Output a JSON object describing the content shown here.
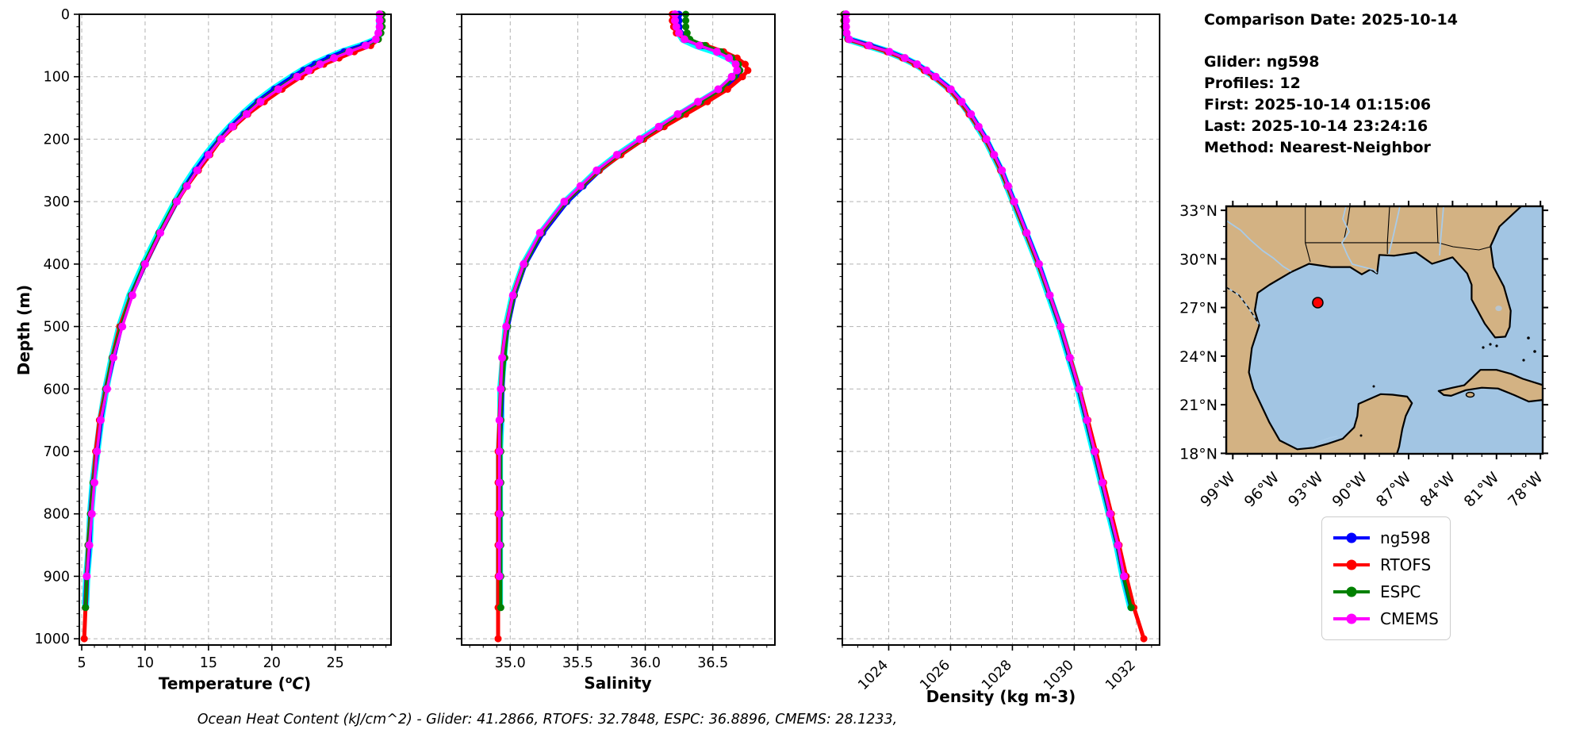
{
  "info": {
    "comparison_date": "Comparison Date: 2025-10-14",
    "glider": "Glider: ng598",
    "profiles": "Profiles: 12",
    "first": "First: 2025-10-14 01:15:06",
    "last": "Last: 2025-10-14 23:24:16",
    "method": "Method: Nearest-Neighbor"
  },
  "footer": "Ocean Heat Content (kJ/cm^2) - Glider: 41.2866,  RTOFS: 32.7848,  ESPC: 36.8896,  CMEMS: 28.1233,",
  "ylabel": "Depth (m)",
  "temp_label": {
    "pre": "Temperature (",
    "sup": "o",
    "it": "C",
    "post": ")"
  },
  "legend": {
    "items": [
      {
        "label": "ng598",
        "color": "#0000ff"
      },
      {
        "label": "RTOFS",
        "color": "#ff0000"
      },
      {
        "label": "ESPC",
        "color": "#008000"
      },
      {
        "label": "CMEMS",
        "color": "#ff00ff"
      }
    ]
  },
  "map": {
    "lat_tick_labels": [
      "33°N",
      "30°N",
      "27°N",
      "24°N",
      "21°N",
      "18°N"
    ],
    "lat_tick_values": [
      33,
      30,
      27,
      24,
      21,
      18
    ],
    "lon_tick_labels": [
      "99°W",
      "96°W",
      "93°W",
      "90°W",
      "87°W",
      "84°W",
      "81°W",
      "78°W"
    ],
    "lon_tick_values": [
      -99,
      -96,
      -93,
      -90,
      -87,
      -84,
      -81,
      -78
    ],
    "land_color": "#d3b283",
    "ocean_color": "#a2c5e3",
    "river_color": "#a9cbe8",
    "marker": {
      "lon": -93.2,
      "lat": 27.3,
      "color": "#ff0000"
    }
  },
  "chart_data": [
    {
      "type": "line",
      "xlabel": "Temperature (°C)",
      "ylabel": "Depth (m)",
      "xlim": [
        4.81,
        29.4
      ],
      "ylim": [
        1010,
        0
      ],
      "xticks": [
        5,
        10,
        15,
        20,
        25
      ],
      "xtick_labels": [
        "5",
        "10",
        "15",
        "20",
        "25"
      ],
      "x_minor_step": 1,
      "yticks": [
        0,
        100,
        200,
        300,
        400,
        500,
        600,
        700,
        800,
        900,
        1000
      ],
      "y_minor_step": 20,
      "xtick_rotation": 0,
      "show_ylabels": true,
      "depths": [
        0,
        10,
        20,
        30,
        40,
        50,
        60,
        70,
        80,
        90,
        100,
        120,
        140,
        160,
        180,
        200,
        225,
        250,
        275,
        300,
        350,
        400,
        450,
        500,
        550,
        600,
        650,
        700,
        750,
        800,
        850,
        900,
        950,
        1000
      ],
      "series": [
        {
          "name": "glider-raw",
          "color": "#00ffff",
          "width": 9,
          "marker_r": 0,
          "last_depth": 950,
          "values": [
            28.5,
            28.5,
            28.5,
            28.5,
            28.3,
            27.1,
            25.6,
            24.4,
            23.3,
            22.4,
            21.6,
            20.1,
            18.8,
            17.7,
            16.7,
            15.8,
            14.8,
            13.9,
            13.1,
            12.4,
            11.1,
            9.9,
            8.8,
            8.0,
            7.4,
            6.9,
            6.5,
            6.2,
            5.9,
            5.7,
            5.6,
            5.4,
            5.3,
            5.2
          ]
        },
        {
          "name": "ng598",
          "color": "#0000ff",
          "width": 6,
          "marker_r": 4.5,
          "last_depth": 950,
          "values": [
            28.5,
            28.5,
            28.5,
            28.5,
            28.3,
            27.2,
            25.7,
            24.5,
            23.4,
            22.5,
            21.7,
            20.2,
            18.9,
            17.8,
            16.8,
            15.9,
            14.9,
            14.0,
            13.2,
            12.5,
            11.2,
            10.0,
            8.9,
            8.1,
            7.5,
            6.9,
            6.5,
            6.2,
            5.9,
            5.7,
            5.6,
            5.4,
            5.3,
            5.2
          ]
        },
        {
          "name": "RTOFS",
          "color": "#ff0000",
          "width": 5,
          "marker_r": 4.5,
          "last_depth": 1000,
          "values": [
            28.6,
            28.6,
            28.6,
            28.5,
            28.4,
            27.8,
            26.5,
            25.3,
            24.1,
            23.1,
            22.3,
            20.8,
            19.4,
            18.1,
            17.0,
            16.0,
            15.1,
            14.2,
            13.3,
            12.5,
            11.2,
            10.0,
            8.9,
            8.0,
            7.4,
            6.9,
            6.4,
            6.1,
            5.9,
            5.7,
            5.5,
            5.4,
            5.3,
            5.2
          ]
        },
        {
          "name": "ESPC",
          "color": "#008000",
          "width": 4,
          "marker_r": 4.5,
          "last_depth": 950,
          "values": [
            28.7,
            28.7,
            28.7,
            28.6,
            28.4,
            27.4,
            26.0,
            24.8,
            23.7,
            22.8,
            21.9,
            20.4,
            19.0,
            17.9,
            16.9,
            15.9,
            15.0,
            14.1,
            13.2,
            12.4,
            11.1,
            9.9,
            8.9,
            8.1,
            7.4,
            6.9,
            6.5,
            6.2,
            5.9,
            5.7,
            5.5,
            5.4,
            5.3,
            5.2
          ]
        },
        {
          "name": "CMEMS",
          "color": "#ff00ff",
          "width": 3.5,
          "marker_r": 5,
          "last_depth": 900,
          "values": [
            28.5,
            28.5,
            28.5,
            28.4,
            28.2,
            27.4,
            26.1,
            24.9,
            23.8,
            22.9,
            22.0,
            20.5,
            19.1,
            18.0,
            16.9,
            16.0,
            15.0,
            14.1,
            13.3,
            12.5,
            11.2,
            10.0,
            9.0,
            8.2,
            7.5,
            7.0,
            6.5,
            6.2,
            6.0,
            5.8,
            5.6,
            5.4,
            5.3,
            5.2
          ]
        }
      ]
    },
    {
      "type": "line",
      "xlabel": "Salinity",
      "xlim": [
        34.64,
        36.96
      ],
      "ylim": [
        1010,
        0
      ],
      "xticks": [
        35.0,
        35.5,
        36.0,
        36.5
      ],
      "xtick_labels": [
        "35.0",
        "35.5",
        "36.0",
        "36.5"
      ],
      "x_minor_step": 0.1,
      "yticks": [
        0,
        100,
        200,
        300,
        400,
        500,
        600,
        700,
        800,
        900,
        1000
      ],
      "y_minor_step": 20,
      "xtick_rotation": 0,
      "show_ylabels": false,
      "depths": [
        0,
        10,
        20,
        30,
        40,
        50,
        60,
        70,
        80,
        90,
        100,
        120,
        140,
        160,
        180,
        200,
        225,
        250,
        275,
        300,
        350,
        400,
        450,
        500,
        550,
        600,
        650,
        700,
        750,
        800,
        850,
        900,
        950,
        1000
      ],
      "series": [
        {
          "name": "glider-raw",
          "color": "#00ffff",
          "width": 9,
          "marker_r": 0,
          "last_depth": 950,
          "values": [
            36.24,
            36.24,
            36.24,
            36.25,
            36.28,
            36.38,
            36.52,
            36.62,
            36.68,
            36.69,
            36.66,
            36.56,
            36.41,
            36.26,
            36.11,
            35.97,
            35.8,
            35.65,
            35.53,
            35.41,
            35.23,
            35.1,
            35.02,
            34.97,
            34.95,
            34.93,
            34.93,
            34.92,
            34.92,
            34.92,
            34.92,
            34.92,
            34.92,
            34.92
          ]
        },
        {
          "name": "ng598",
          "color": "#0000ff",
          "width": 6,
          "marker_r": 4.5,
          "last_depth": 950,
          "values": [
            36.25,
            36.25,
            36.25,
            36.26,
            36.3,
            36.42,
            36.55,
            36.64,
            36.69,
            36.7,
            36.67,
            36.57,
            36.42,
            36.27,
            36.12,
            35.98,
            35.81,
            35.66,
            35.54,
            35.42,
            35.24,
            35.11,
            35.03,
            34.98,
            34.95,
            34.94,
            34.93,
            34.92,
            34.92,
            34.92,
            34.92,
            34.92,
            34.92,
            34.92
          ]
        },
        {
          "name": "RTOFS",
          "color": "#ff0000",
          "width": 5,
          "marker_r": 4.5,
          "last_depth": 1000,
          "values": [
            36.2,
            36.2,
            36.21,
            36.23,
            36.3,
            36.45,
            36.58,
            36.68,
            36.74,
            36.76,
            36.72,
            36.61,
            36.46,
            36.3,
            36.14,
            35.99,
            35.82,
            35.66,
            35.53,
            35.41,
            35.23,
            35.1,
            35.02,
            34.97,
            34.94,
            34.93,
            34.92,
            34.91,
            34.91,
            34.91,
            34.91,
            34.91,
            34.91,
            34.91
          ]
        },
        {
          "name": "ESPC",
          "color": "#008000",
          "width": 4,
          "marker_r": 4.5,
          "last_depth": 950,
          "values": [
            36.3,
            36.3,
            36.3,
            36.31,
            36.33,
            36.44,
            36.56,
            36.64,
            36.69,
            36.7,
            36.66,
            36.56,
            36.41,
            36.26,
            36.11,
            35.97,
            35.8,
            35.65,
            35.53,
            35.41,
            35.23,
            35.11,
            35.03,
            34.98,
            34.96,
            34.94,
            34.93,
            34.93,
            34.93,
            34.93,
            34.93,
            34.93,
            34.93,
            34.93
          ]
        },
        {
          "name": "CMEMS",
          "color": "#ff00ff",
          "width": 3.5,
          "marker_r": 5,
          "last_depth": 900,
          "values": [
            36.22,
            36.22,
            36.23,
            36.25,
            36.29,
            36.4,
            36.53,
            36.62,
            36.67,
            36.68,
            36.64,
            36.54,
            36.39,
            36.24,
            36.1,
            35.96,
            35.79,
            35.64,
            35.52,
            35.4,
            35.22,
            35.1,
            35.02,
            34.97,
            34.94,
            34.93,
            34.92,
            34.92,
            34.92,
            34.92,
            34.92,
            34.92,
            34.92,
            34.92
          ]
        }
      ]
    },
    {
      "type": "line",
      "xlabel": "Density (kg m-3)",
      "xlim": [
        1022.5,
        1032.76
      ],
      "ylim": [
        1010,
        0
      ],
      "xticks": [
        1024,
        1026,
        1028,
        1030,
        1032
      ],
      "xtick_labels": [
        "1024",
        "1026",
        "1028",
        "1030",
        "1032"
      ],
      "x_minor_step": 0.5,
      "yticks": [
        0,
        100,
        200,
        300,
        400,
        500,
        600,
        700,
        800,
        900,
        1000
      ],
      "y_minor_step": 20,
      "xtick_rotation": 45,
      "show_ylabels": false,
      "depths": [
        0,
        10,
        20,
        30,
        40,
        50,
        60,
        70,
        80,
        90,
        100,
        120,
        140,
        160,
        180,
        200,
        225,
        250,
        275,
        300,
        350,
        400,
        450,
        500,
        550,
        600,
        650,
        700,
        750,
        800,
        850,
        900,
        950,
        1000
      ],
      "series": [
        {
          "name": "glider-raw",
          "color": "#00ffff",
          "width": 9,
          "marker_r": 0,
          "last_depth": 950,
          "values": [
            1022.58,
            1022.58,
            1022.58,
            1022.6,
            1022.68,
            1023.35,
            1023.98,
            1024.48,
            1024.88,
            1025.18,
            1025.48,
            1025.98,
            1026.33,
            1026.63,
            1026.88,
            1027.13,
            1027.38,
            1027.63,
            1027.83,
            1028.03,
            1028.43,
            1028.83,
            1029.18,
            1029.53,
            1029.83,
            1030.13,
            1030.38,
            1030.63,
            1030.88,
            1031.13,
            1031.38,
            1031.58,
            1031.83,
            1032.05
          ]
        },
        {
          "name": "ng598",
          "color": "#0000ff",
          "width": 6,
          "marker_r": 4.5,
          "last_depth": 950,
          "values": [
            1022.6,
            1022.6,
            1022.6,
            1022.62,
            1022.7,
            1023.4,
            1024.0,
            1024.5,
            1024.9,
            1025.2,
            1025.5,
            1026.0,
            1026.35,
            1026.65,
            1026.9,
            1027.15,
            1027.4,
            1027.65,
            1027.85,
            1028.05,
            1028.45,
            1028.85,
            1029.2,
            1029.55,
            1029.85,
            1030.15,
            1030.4,
            1030.65,
            1030.9,
            1031.15,
            1031.4,
            1031.6,
            1031.85,
            1032.05
          ]
        },
        {
          "name": "RTOFS",
          "color": "#ff0000",
          "width": 5,
          "marker_r": 4.5,
          "last_depth": 1000,
          "values": [
            1022.55,
            1022.55,
            1022.56,
            1022.6,
            1022.68,
            1023.3,
            1023.95,
            1024.45,
            1024.85,
            1025.15,
            1025.45,
            1025.95,
            1026.3,
            1026.6,
            1026.88,
            1027.12,
            1027.38,
            1027.62,
            1027.83,
            1028.03,
            1028.43,
            1028.83,
            1029.2,
            1029.55,
            1029.87,
            1030.17,
            1030.44,
            1030.7,
            1030.95,
            1031.2,
            1031.45,
            1031.68,
            1031.93,
            1032.25
          ]
        },
        {
          "name": "ESPC",
          "color": "#008000",
          "width": 4,
          "marker_r": 4.5,
          "last_depth": 950,
          "values": [
            1022.56,
            1022.56,
            1022.57,
            1022.6,
            1022.7,
            1023.38,
            1024.0,
            1024.5,
            1024.9,
            1025.2,
            1025.5,
            1025.99,
            1026.34,
            1026.64,
            1026.89,
            1027.14,
            1027.39,
            1027.64,
            1027.84,
            1028.04,
            1028.44,
            1028.84,
            1029.19,
            1029.54,
            1029.84,
            1030.14,
            1030.39,
            1030.64,
            1030.89,
            1031.14,
            1031.39,
            1031.59,
            1031.84,
            1032.06
          ]
        },
        {
          "name": "CMEMS",
          "color": "#ff00ff",
          "width": 3.5,
          "marker_r": 5,
          "last_depth": 900,
          "values": [
            1022.62,
            1022.62,
            1022.62,
            1022.64,
            1022.72,
            1023.36,
            1024.02,
            1024.52,
            1024.92,
            1025.22,
            1025.52,
            1026.01,
            1026.36,
            1026.66,
            1026.91,
            1027.16,
            1027.41,
            1027.66,
            1027.86,
            1028.06,
            1028.46,
            1028.86,
            1029.21,
            1029.56,
            1029.86,
            1030.16,
            1030.41,
            1030.66,
            1030.91,
            1031.16,
            1031.41,
            1031.61,
            1031.86,
            1032.06
          ]
        }
      ]
    }
  ]
}
